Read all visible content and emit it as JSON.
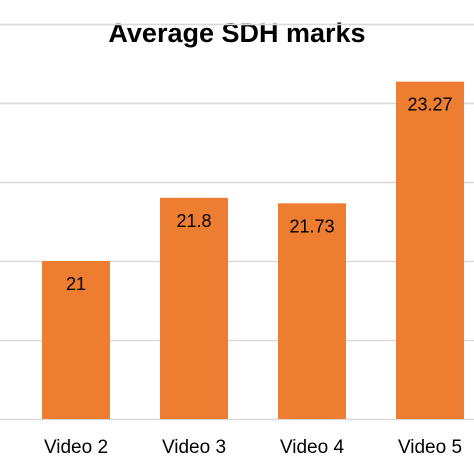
{
  "chart_data": {
    "type": "bar",
    "title": "Average SDH marks",
    "categories": [
      "Video 2",
      "Video 3",
      "Video 4",
      "Video 5"
    ],
    "values": [
      21,
      21.8,
      21.73,
      23.27
    ],
    "data_labels": [
      "21",
      "21.8",
      "21.73",
      "23.27"
    ],
    "ylim": [
      19,
      24
    ],
    "bar_color": "#ED7D31",
    "gridline_color": "#D9D9D9",
    "grid": true,
    "legend": false,
    "xlabel": "",
    "ylabel": ""
  }
}
